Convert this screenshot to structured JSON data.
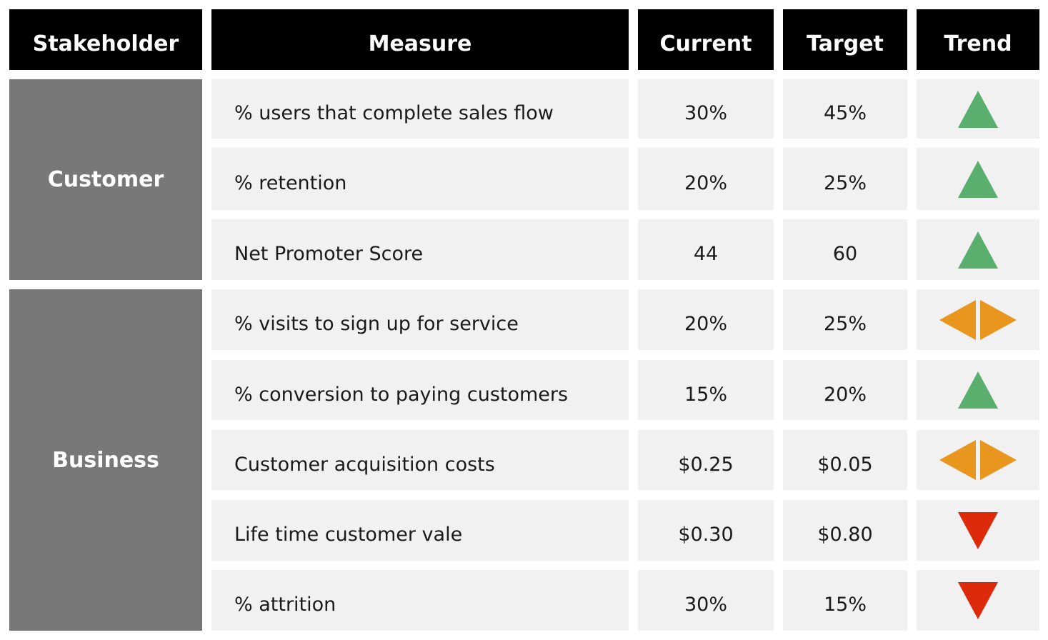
{
  "headers": {
    "stakeholder": "Stakeholder",
    "measure": "Measure",
    "current": "Current",
    "target": "Target",
    "trend": "Trend"
  },
  "groups": [
    {
      "name": "Customer"
    },
    {
      "name": "Business"
    }
  ],
  "rows": [
    {
      "group": "Customer",
      "measure": "% users that complete sales flow",
      "current": "30%",
      "target": "45%",
      "trend": "up-arrow-icon"
    },
    {
      "group": "Customer",
      "measure": "% retention",
      "current": "20%",
      "target": "25%",
      "trend": "up-arrow-icon"
    },
    {
      "group": "Customer",
      "measure": "Net Promoter Score",
      "current": "44",
      "target": "60",
      "trend": "up-arrow-icon"
    },
    {
      "group": "Business",
      "measure": "% visits to sign up for service",
      "current": "20%",
      "target": "25%",
      "trend": "flat-arrow-icon"
    },
    {
      "group": "Business",
      "measure": "% conversion to paying customers",
      "current": "15%",
      "target": "20%",
      "trend": "up-arrow-icon"
    },
    {
      "group": "Business",
      "measure": "Customer acquisition costs",
      "current": "$0.25",
      "target": "$0.05",
      "trend": "flat-arrow-icon"
    },
    {
      "group": "Business",
      "measure": "Life time customer vale",
      "current": "$0.30",
      "target": "$0.80",
      "trend": "down-arrow-icon"
    },
    {
      "group": "Business",
      "measure": "% attrition",
      "current": "30%",
      "target": "15%",
      "trend": "down-arrow-icon"
    }
  ],
  "colors": {
    "header_bg": "#000000",
    "stakeholder_bg": "#787878",
    "row_bg": "#f1f1f1",
    "trend_up": "#5aaf6e",
    "trend_flat": "#e8961e",
    "trend_down": "#dc2a0a"
  }
}
